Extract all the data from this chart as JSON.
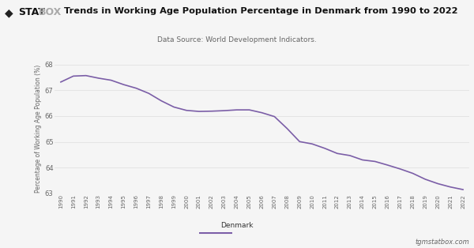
{
  "title": "Trends in Working Age Population Percentage in Denmark from 1990 to 2022",
  "subtitle": "Data Source: World Development Indicators.",
  "ylabel": "Percentage of Working Age Population (%)",
  "legend_label": "Denmark",
  "line_color": "#7B5EA7",
  "background_color": "#f5f5f5",
  "plot_bg_color": "#f5f5f5",
  "grid_color": "#dddddd",
  "title_color": "#111111",
  "subtitle_color": "#666666",
  "tick_color": "#666666",
  "footer_right": "tgmstatbox.com",
  "years": [
    1990,
    1991,
    1992,
    1993,
    1994,
    1995,
    1996,
    1997,
    1998,
    1999,
    2000,
    2001,
    2002,
    2003,
    2004,
    2005,
    2006,
    2007,
    2008,
    2009,
    2010,
    2011,
    2012,
    2013,
    2014,
    2015,
    2016,
    2017,
    2018,
    2019,
    2020,
    2021,
    2022
  ],
  "values": [
    67.32,
    67.55,
    67.57,
    67.47,
    67.39,
    67.22,
    67.08,
    66.88,
    66.59,
    66.35,
    66.22,
    66.18,
    66.19,
    66.21,
    66.24,
    66.24,
    66.13,
    65.98,
    65.52,
    65.01,
    64.92,
    64.75,
    64.55,
    64.47,
    64.3,
    64.24,
    64.1,
    63.95,
    63.78,
    63.55,
    63.38,
    63.25,
    63.15
  ],
  "ylim": [
    63.0,
    68.0
  ],
  "yticks": [
    63,
    64,
    65,
    66,
    67,
    68
  ]
}
